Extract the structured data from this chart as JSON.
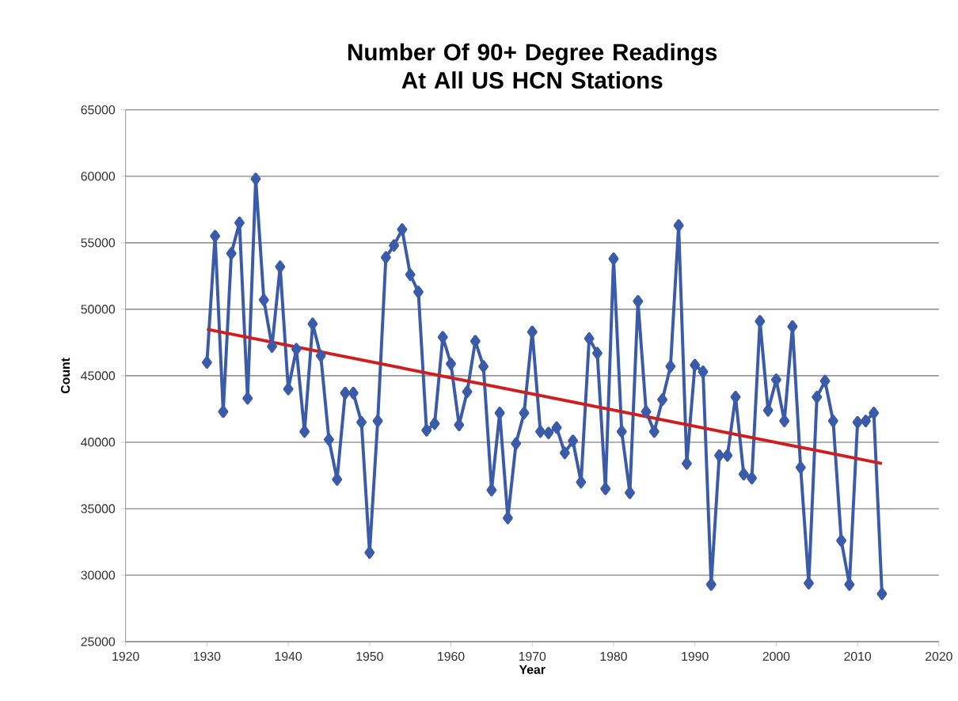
{
  "chart_data": {
    "type": "line",
    "title": "Number Of 90+ Degree Readings At All US HCN Stations",
    "xlabel": "Year",
    "ylabel": "Count",
    "xlim": [
      1920,
      2020
    ],
    "xticks": [
      1920,
      1930,
      1940,
      1950,
      1960,
      1970,
      1980,
      1990,
      2000,
      2010,
      2020
    ],
    "ylim": [
      25000,
      65000
    ],
    "yticks": [
      25000,
      30000,
      35000,
      40000,
      45000,
      50000,
      55000,
      60000,
      65000
    ],
    "grid": "y",
    "marker": "diamond",
    "line_style": "solid",
    "series": [
      {
        "color": "#3b5ba9",
        "x": [
          1930,
          1931,
          1932,
          1933,
          1934,
          1935,
          1936,
          1937,
          1938,
          1939,
          1940,
          1941,
          1942,
          1943,
          1944,
          1945,
          1946,
          1947,
          1948,
          1949,
          1950,
          1951,
          1952,
          1953,
          1954,
          1955,
          1956,
          1957,
          1958,
          1959,
          1960,
          1961,
          1962,
          1963,
          1964,
          1965,
          1966,
          1967,
          1968,
          1969,
          1970,
          1971,
          1972,
          1973,
          1974,
          1975,
          1976,
          1977,
          1978,
          1979,
          1980,
          1981,
          1982,
          1983,
          1984,
          1985,
          1986,
          1987,
          1988,
          1989,
          1990,
          1991,
          1992,
          1993,
          1994,
          1995,
          1996,
          1997,
          1998,
          1999,
          2000,
          2001,
          2002,
          2003,
          2004,
          2005,
          2006,
          2007,
          2008,
          2009,
          2010,
          2011,
          2012,
          2013
        ],
        "values": [
          46000,
          55500,
          42300,
          54200,
          56500,
          43300,
          59800,
          50700,
          47200,
          53200,
          44000,
          47000,
          40800,
          48900,
          46500,
          40200,
          37200,
          43700,
          43700,
          41500,
          31700,
          41600,
          53900,
          54800,
          56000,
          52600,
          51300,
          40900,
          41400,
          47900,
          45900,
          41300,
          43800,
          47600,
          45700,
          36400,
          42200,
          34300,
          39900,
          42200,
          48300,
          40800,
          40700,
          41100,
          39200,
          40100,
          37000,
          47800,
          46700,
          36500,
          53800,
          40800,
          36200,
          50600,
          42300,
          40800,
          43200,
          45700,
          56300,
          38400,
          45800,
          45300,
          29300,
          39000,
          39000,
          43400,
          37600,
          37300,
          49100,
          42400,
          44700,
          41600,
          48700,
          38100,
          29400,
          43400,
          44600,
          41600,
          32600,
          29300,
          41500,
          41600,
          42200,
          28600
        ]
      },
      {
        "type": "line",
        "color": "#cc1f1f",
        "marker": "none",
        "x": [
          1930,
          2013
        ],
        "values": [
          48500,
          38400
        ]
      }
    ]
  }
}
